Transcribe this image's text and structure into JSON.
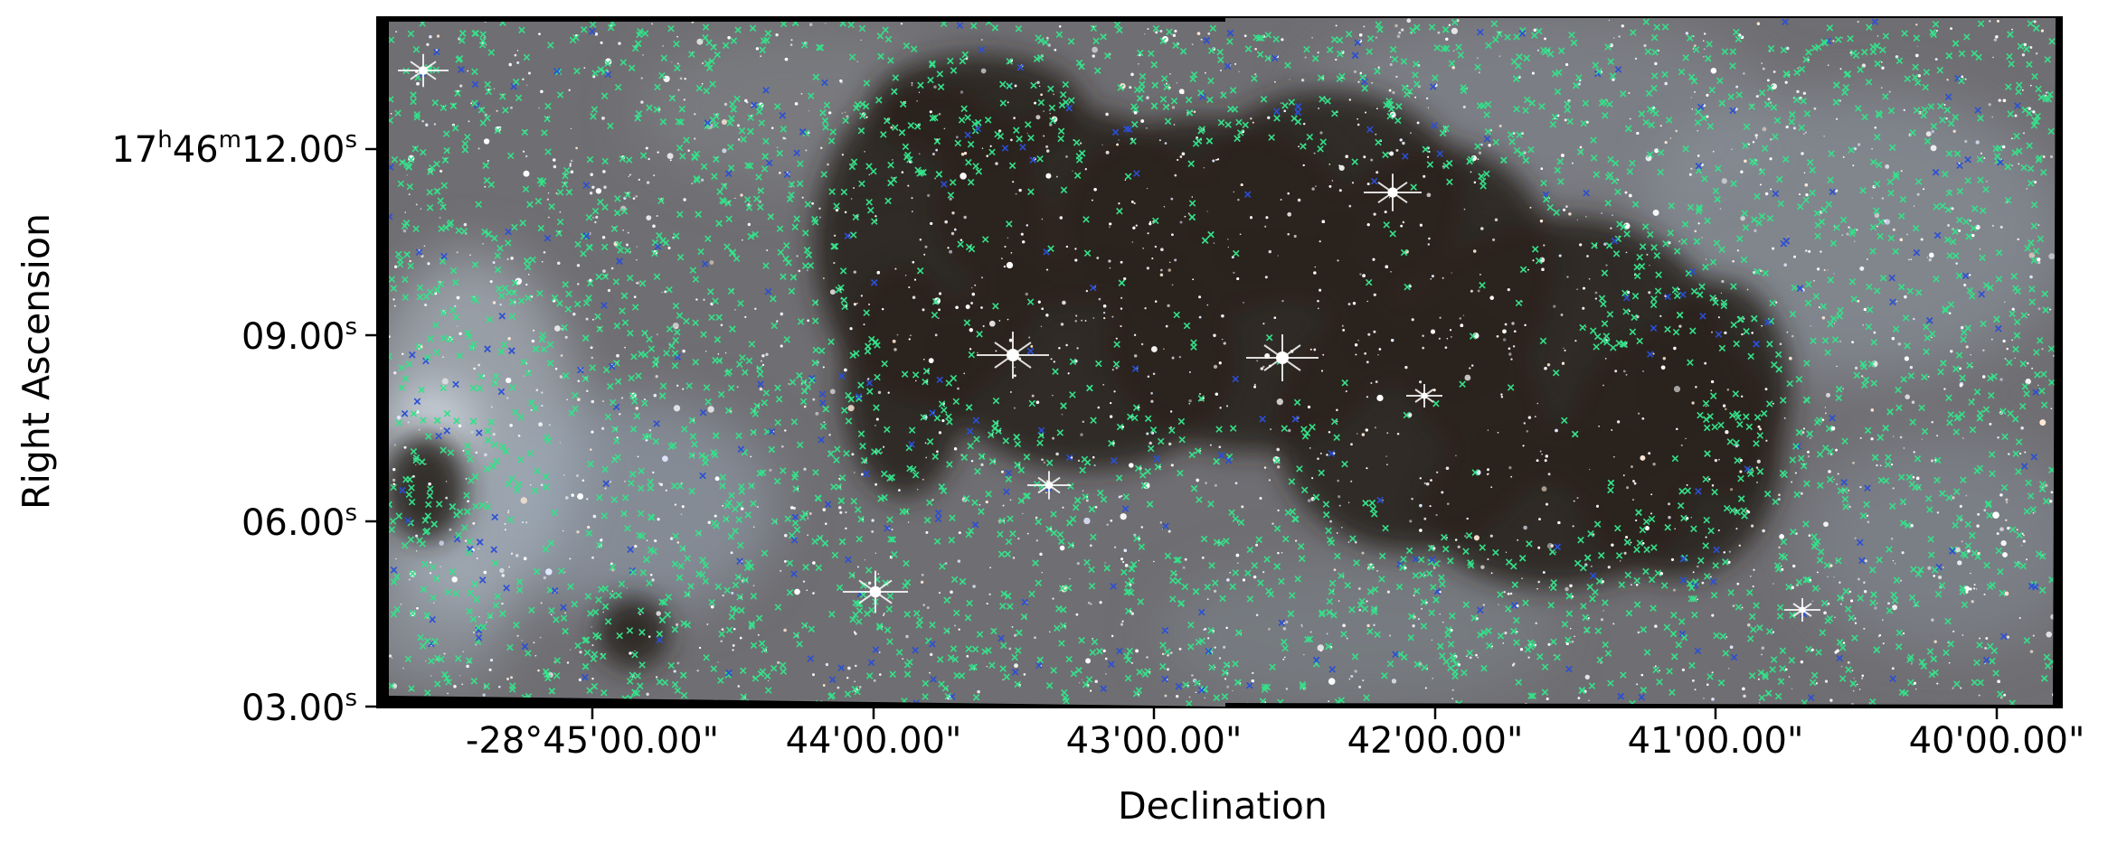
{
  "axes": {
    "xlabel": "Declination",
    "ylabel": "Right Ascension",
    "y_ticks": [
      {
        "h": "17",
        "h_unit": "h",
        "m": "46",
        "m_unit": "m",
        "s": "12.00",
        "s_unit": "s"
      },
      {
        "s": "09.00",
        "s_unit": "s"
      },
      {
        "s": "06.00",
        "s_unit": "s"
      },
      {
        "s": "03.00",
        "s_unit": "s"
      }
    ],
    "x_ticks": [
      "-28°45'00.00\"",
      "44'00.00\"",
      "43'00.00\"",
      "42'00.00\"",
      "41'00.00\"",
      "40'00.00\""
    ]
  },
  "image": {
    "description_colors": {
      "frame": "#000000",
      "dark_cloud": "#2a211c",
      "nebula_haze": "#7f8c99",
      "marker_green": "#35e089",
      "marker_blue": "#2a4fd6"
    },
    "markers": [
      {
        "name": "catalog-source-green",
        "symbol": "x",
        "color": "#35e089"
      },
      {
        "name": "catalog-source-blue",
        "symbol": "x",
        "color": "#2a4fd6"
      }
    ]
  }
}
